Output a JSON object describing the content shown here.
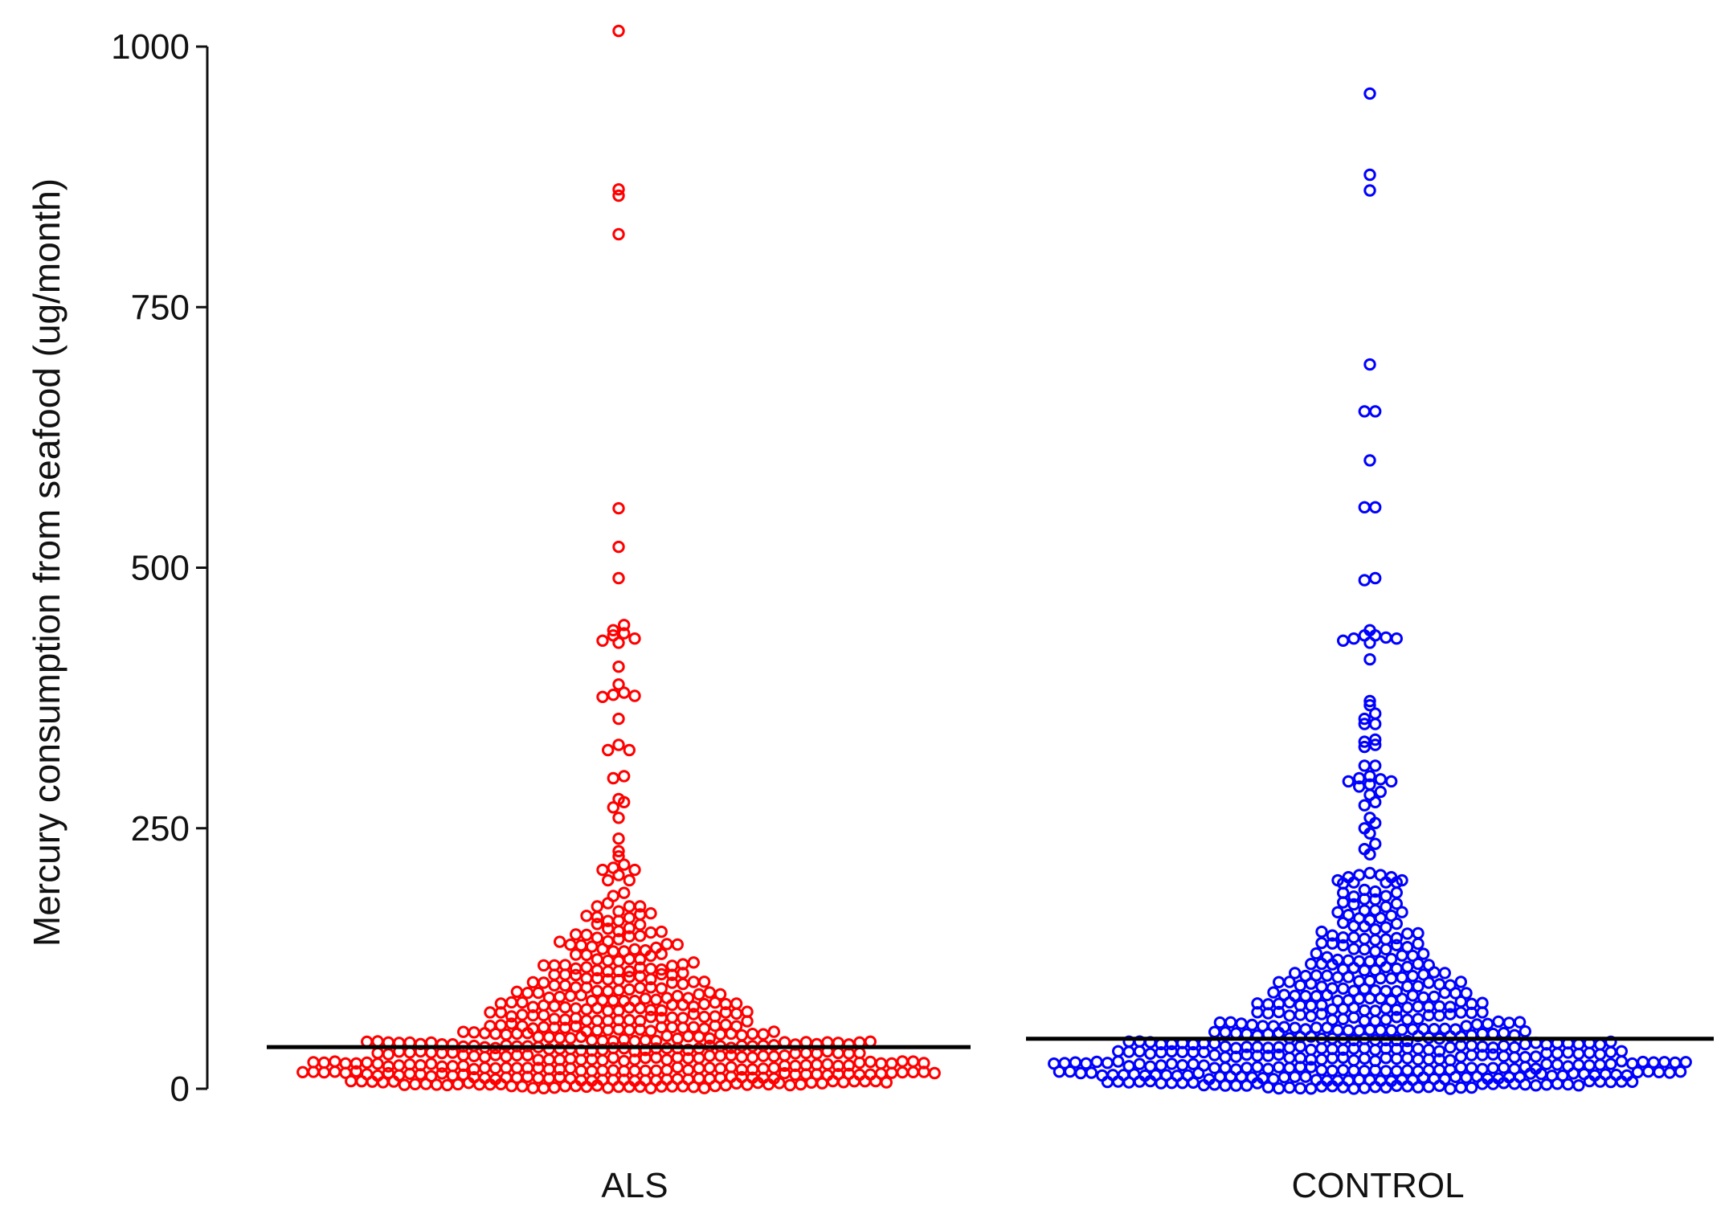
{
  "chart_data": {
    "type": "scatter",
    "ylabel": "Mercury consumption from seafood (ug/month)",
    "ylim": [
      0,
      1000
    ],
    "yticks": [
      0,
      250,
      500,
      750,
      1000
    ],
    "grid": false,
    "legend": "none",
    "categories": [
      "ALS",
      "CONTROL"
    ],
    "series": [
      {
        "category": "ALS",
        "color": "#ff0000",
        "reference_line": 40,
        "outliers": [
          1015,
          863,
          857,
          820,
          557,
          520,
          490,
          445,
          440,
          437,
          435,
          432,
          430,
          428,
          405,
          388,
          380,
          378,
          377,
          376,
          355,
          330,
          325,
          325,
          300,
          298,
          278,
          275,
          270,
          260,
          240,
          228,
          223,
          215,
          212,
          210,
          210,
          205,
          200,
          200,
          188,
          185,
          178,
          175,
          175,
          175
        ]
      },
      {
        "category": "CONTROL",
        "color": "#0000ff",
        "reference_line": 48,
        "outliers": [
          955,
          877,
          862,
          695,
          650,
          650,
          603,
          558,
          558,
          490,
          488,
          440,
          435,
          435,
          433,
          432,
          432,
          430,
          428,
          412,
          372,
          368,
          360,
          355,
          350,
          350,
          335,
          333,
          330,
          328,
          310,
          310,
          300,
          298,
          297,
          295,
          295,
          292,
          290,
          285,
          282,
          275,
          272,
          260,
          255,
          250,
          245,
          235,
          230,
          225,
          207,
          205,
          205,
          203,
          203,
          200,
          200,
          198,
          198,
          198,
          197
        ]
      }
    ]
  }
}
